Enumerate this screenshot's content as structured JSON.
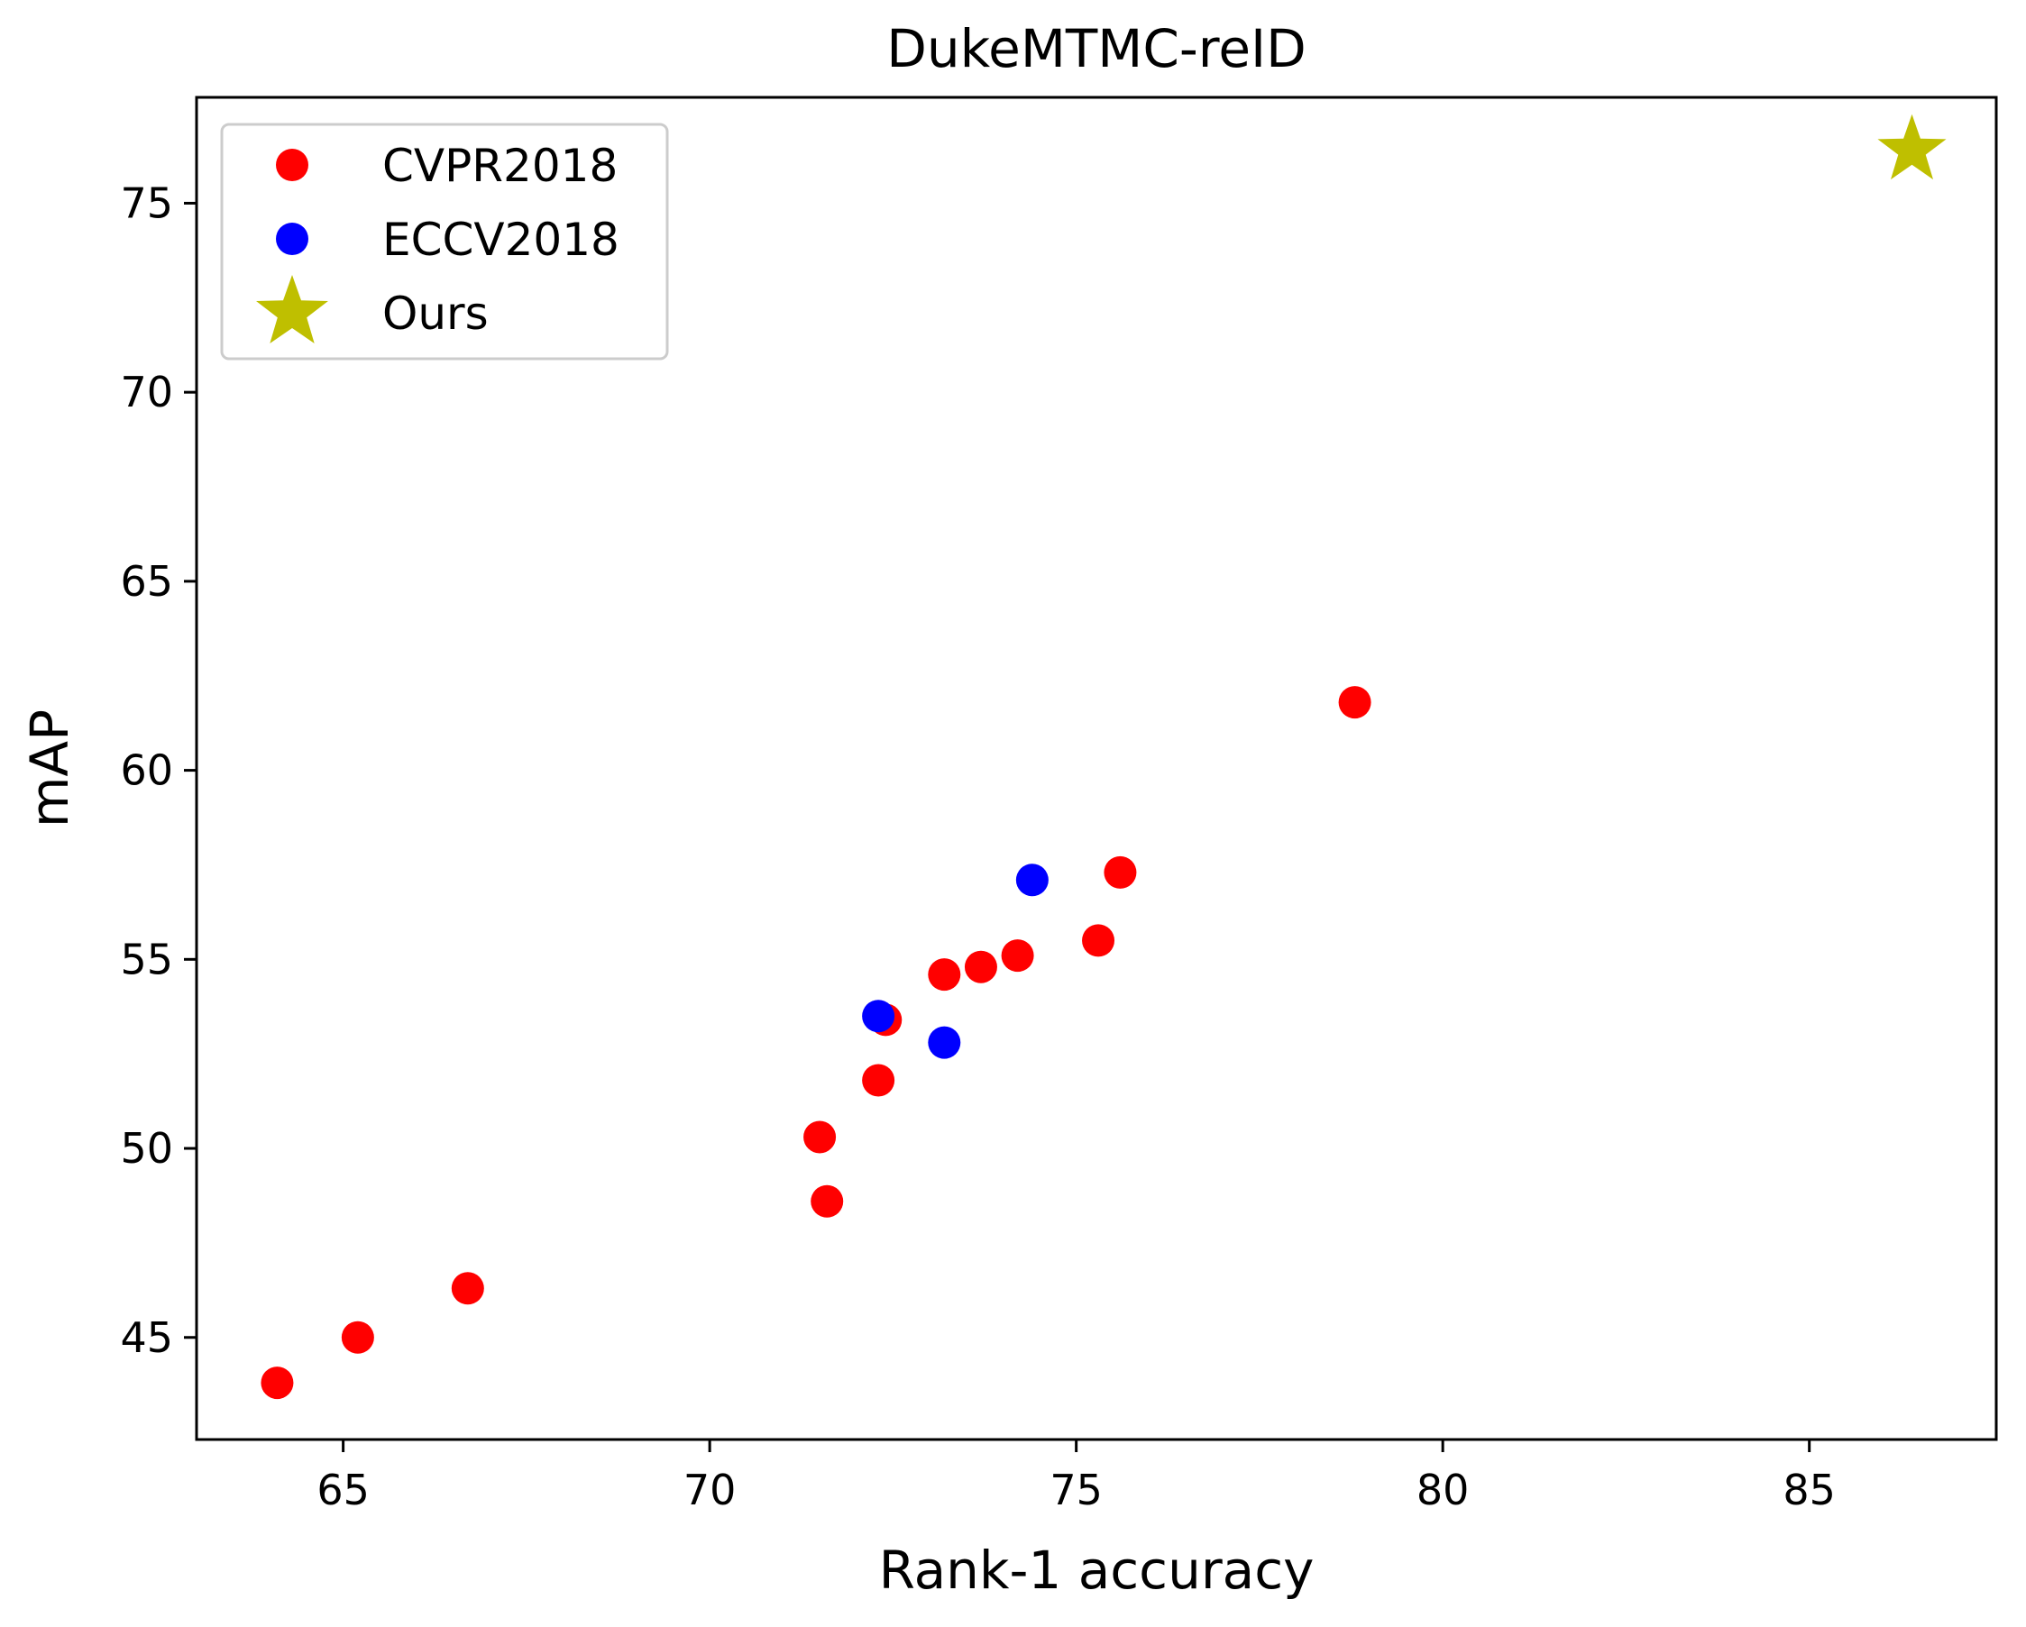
{
  "chart_data": {
    "type": "scatter",
    "title": "DukeMTMC-reID",
    "xlabel": "Rank-1 accuracy",
    "ylabel": "mAP",
    "xlim": [
      63.0,
      87.55
    ],
    "ylim": [
      42.3,
      77.8
    ],
    "xticks": [
      65,
      70,
      75,
      80,
      85
    ],
    "yticks": [
      45,
      50,
      55,
      60,
      65,
      70,
      75
    ],
    "grid": false,
    "legend_position": "upper-left",
    "series": [
      {
        "name": "CVPR2018",
        "color": "#ff0000",
        "marker": "circle",
        "points": [
          {
            "x": 64.1,
            "y": 43.8
          },
          {
            "x": 65.2,
            "y": 45.0
          },
          {
            "x": 66.7,
            "y": 46.3
          },
          {
            "x": 71.5,
            "y": 50.3
          },
          {
            "x": 71.6,
            "y": 48.6
          },
          {
            "x": 72.3,
            "y": 51.8
          },
          {
            "x": 72.4,
            "y": 53.4
          },
          {
            "x": 73.2,
            "y": 54.6
          },
          {
            "x": 73.7,
            "y": 54.8
          },
          {
            "x": 74.2,
            "y": 55.1
          },
          {
            "x": 75.3,
            "y": 55.5
          },
          {
            "x": 75.6,
            "y": 57.3
          },
          {
            "x": 78.8,
            "y": 61.8
          }
        ]
      },
      {
        "name": "ECCV2018",
        "color": "#0000ff",
        "marker": "circle",
        "points": [
          {
            "x": 72.3,
            "y": 53.5
          },
          {
            "x": 73.2,
            "y": 52.8
          },
          {
            "x": 74.4,
            "y": 57.1
          }
        ]
      },
      {
        "name": "Ours",
        "color": "#bfbf00",
        "marker": "star",
        "points": [
          {
            "x": 86.4,
            "y": 76.4
          }
        ]
      }
    ]
  }
}
